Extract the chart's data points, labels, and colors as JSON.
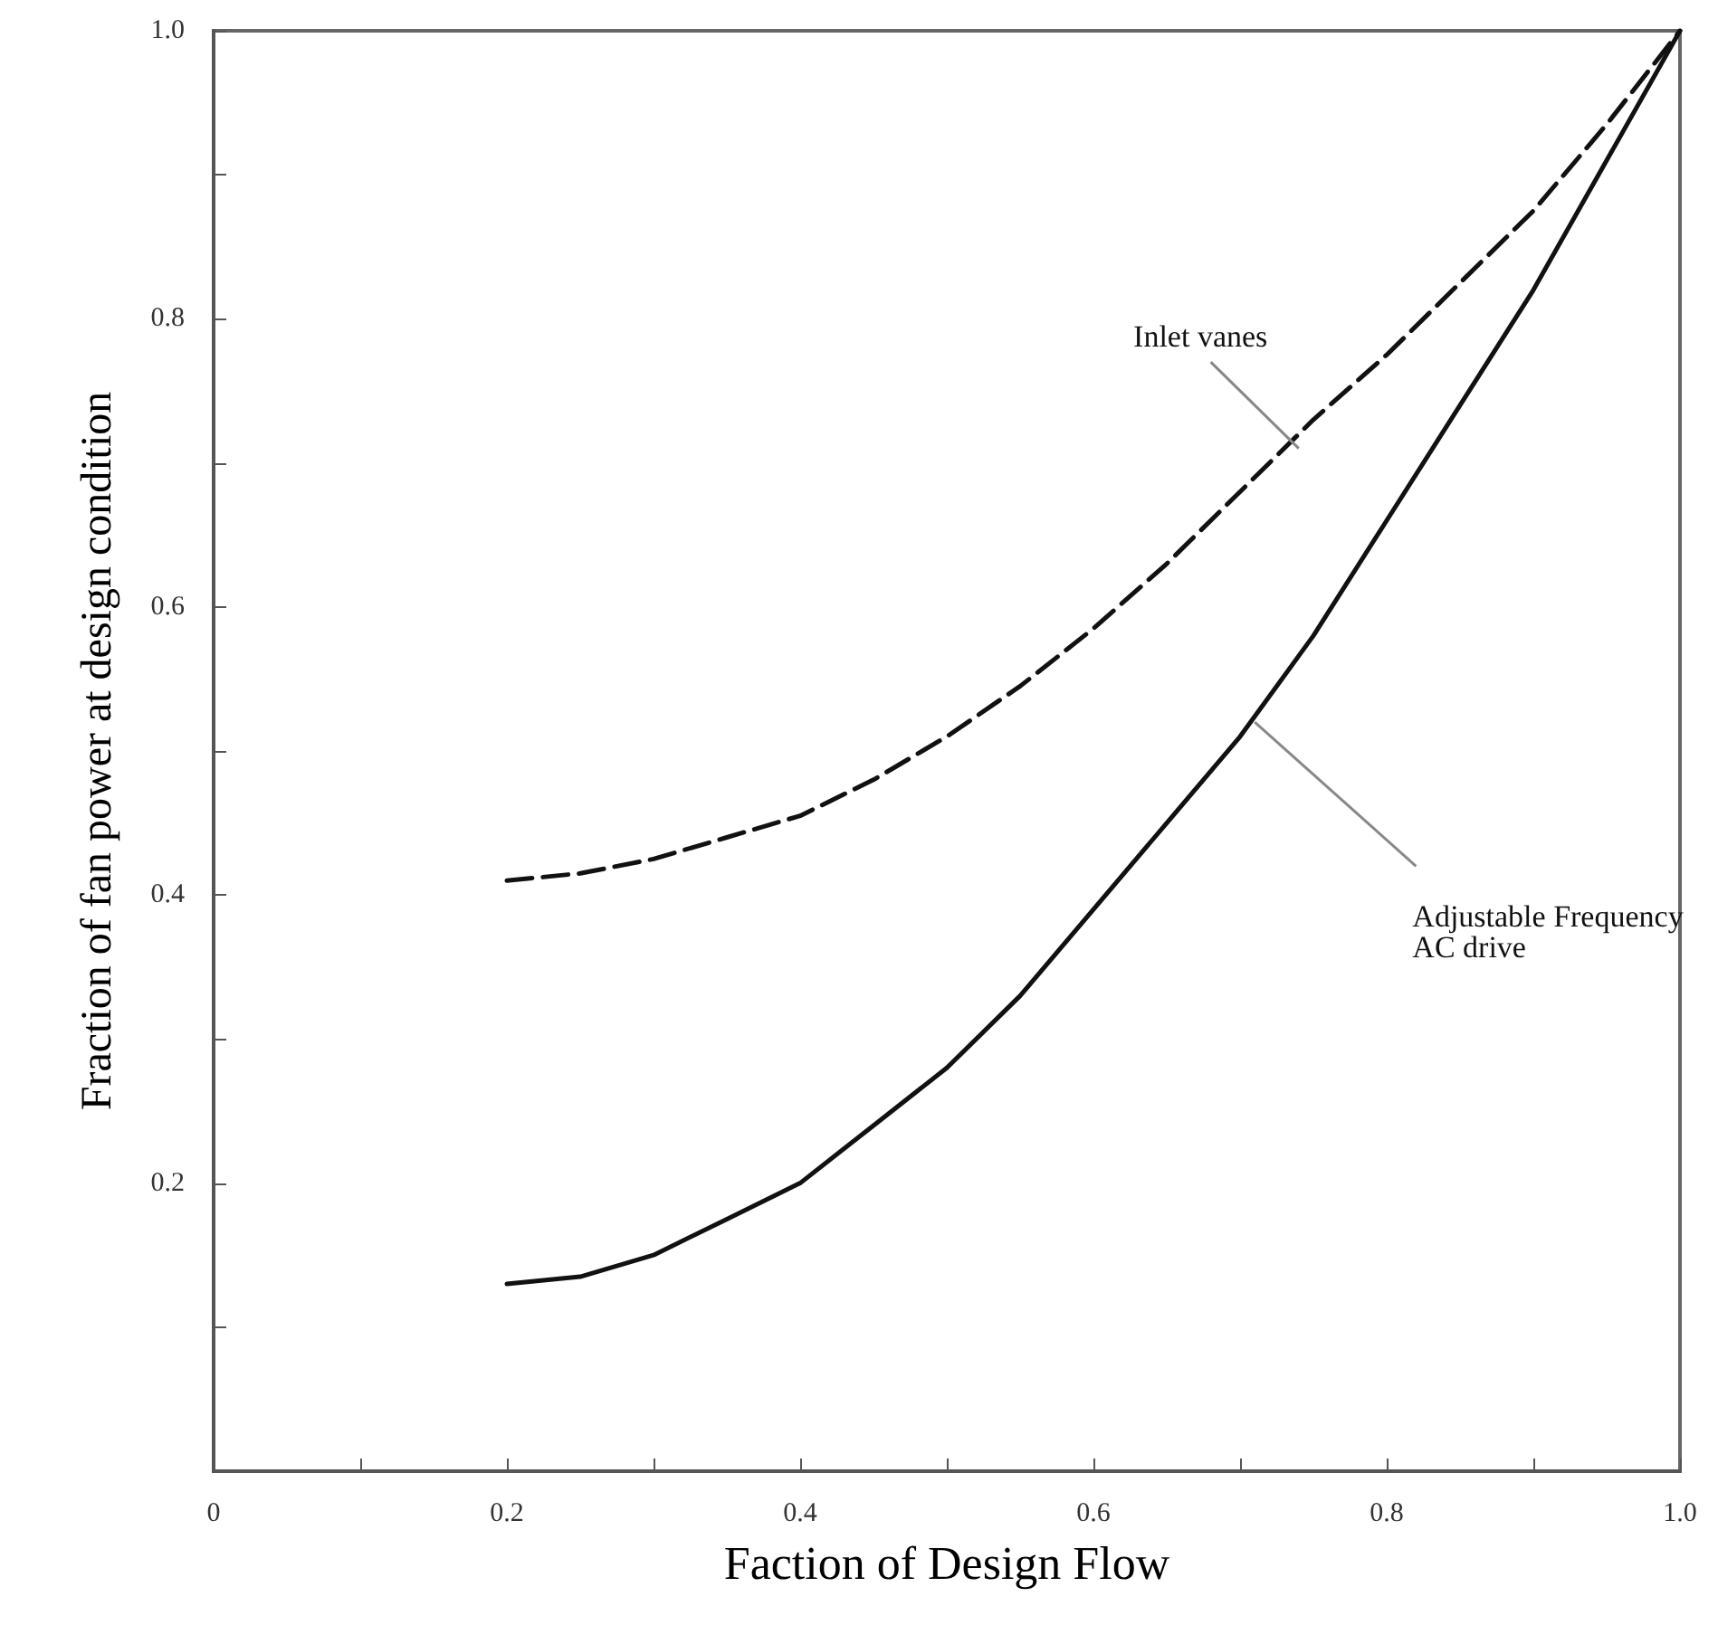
{
  "chart_data": {
    "type": "line",
    "xlabel": "Faction of Design Flow",
    "ylabel": "Fraction of fan power at design condition",
    "xlim": [
      0,
      1
    ],
    "ylim": [
      0,
      1
    ],
    "xticks": [
      0,
      {
        "value": 0.1,
        "label": null
      },
      0.2,
      {
        "value": 0.3,
        "label": null
      },
      0.4,
      {
        "value": 0.5,
        "label": null
      },
      0.6,
      {
        "value": 0.7,
        "label": null
      },
      0.8,
      {
        "value": 0.9,
        "label": null
      },
      {
        "value": 1,
        "label": "1.0"
      }
    ],
    "yticks": [
      {
        "value": 0,
        "label": null
      },
      {
        "value": 0.1,
        "label": null
      },
      0.2,
      {
        "value": 0.3,
        "label": null
      },
      0.4,
      {
        "value": 0.5,
        "label": null
      },
      0.6,
      {
        "value": 0.7,
        "label": null
      },
      0.8,
      {
        "value": 0.9,
        "label": null
      },
      {
        "value": 1,
        "label": "1.0"
      }
    ],
    "marker": "none",
    "series": [
      {
        "color": "#111111",
        "line_style": "dashed",
        "x": [
          0.2,
          0.25,
          0.3,
          0.35,
          0.4,
          0.45,
          0.5,
          0.55,
          0.6,
          0.65,
          0.7,
          0.75,
          0.8,
          0.85,
          0.9,
          0.95,
          1.0
        ],
        "values": [
          0.41,
          0.415,
          0.425,
          0.44,
          0.455,
          0.48,
          0.51,
          0.545,
          0.585,
          0.63,
          0.68,
          0.73,
          0.775,
          0.825,
          0.875,
          0.935,
          1.0
        ]
      },
      {
        "color": "#111111",
        "line_style": "solid",
        "x": [
          0.2,
          0.25,
          0.3,
          0.35,
          0.4,
          0.45,
          0.5,
          0.55,
          0.6,
          0.65,
          0.7,
          0.75,
          0.8,
          0.85,
          0.9,
          0.95,
          1.0
        ],
        "values": [
          0.13,
          0.135,
          0.15,
          0.175,
          0.2,
          0.24,
          0.28,
          0.33,
          0.39,
          0.45,
          0.51,
          0.58,
          0.66,
          0.74,
          0.82,
          0.91,
          1.0
        ]
      }
    ],
    "annotations": [
      {
        "text": "Inlet vanes",
        "x": 0.74,
        "y": 0.71
      },
      {
        "text": "Adjustable Frequency AC drive",
        "x": 0.71,
        "y": 0.52
      }
    ]
  }
}
